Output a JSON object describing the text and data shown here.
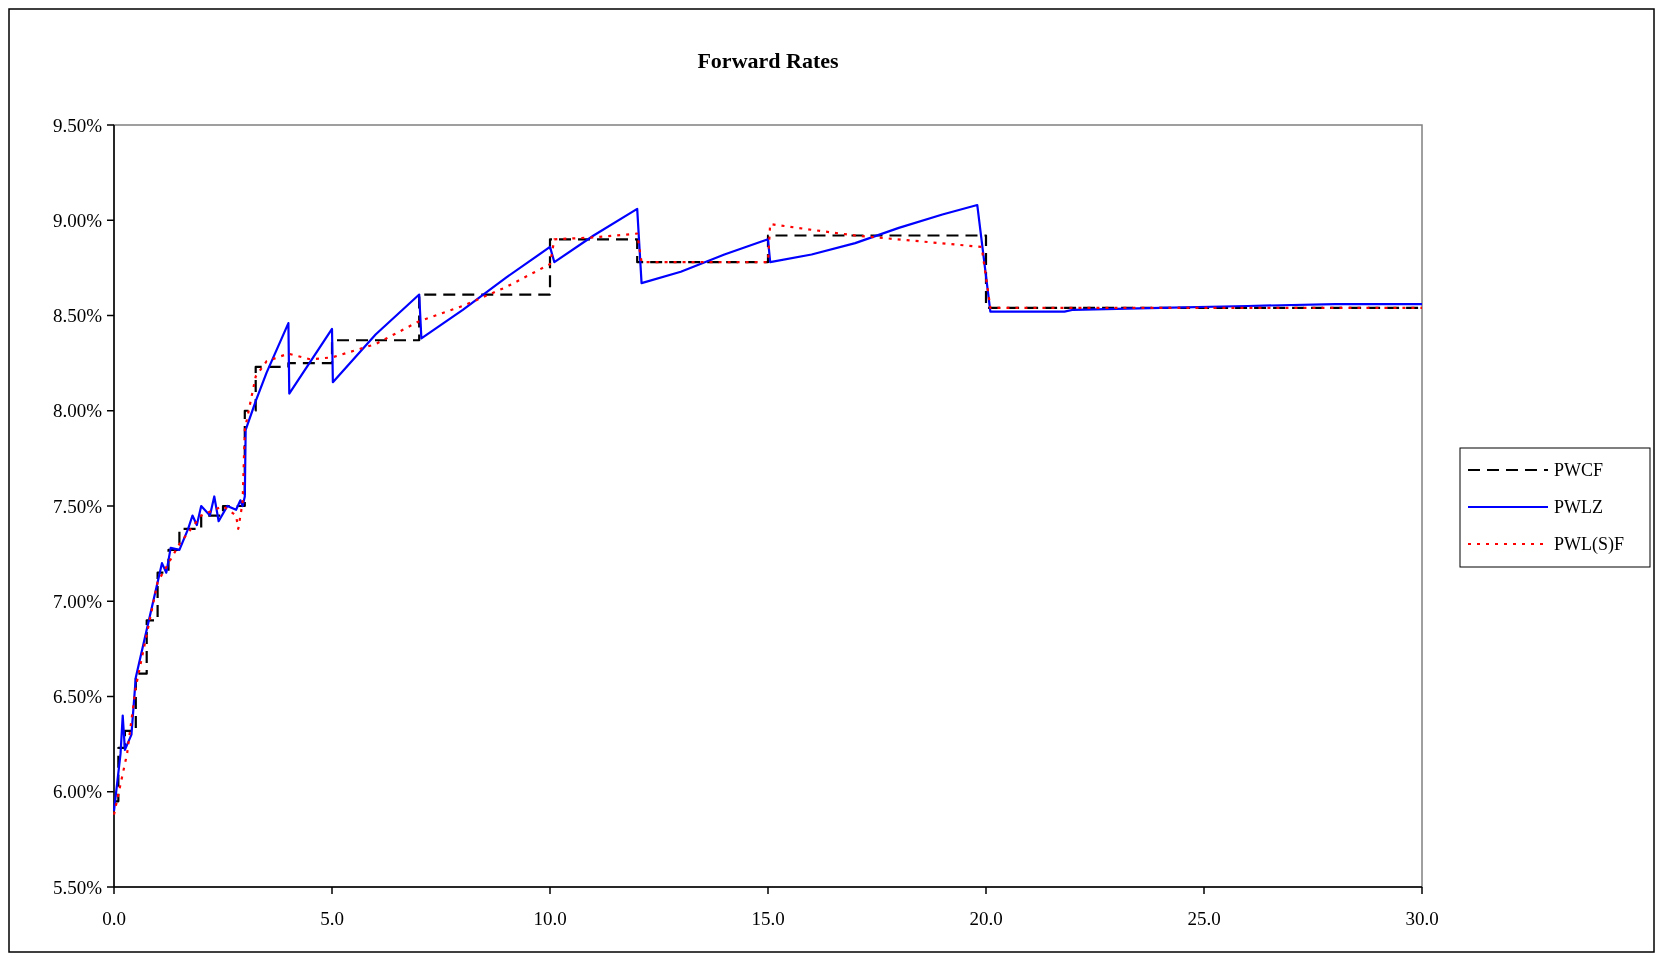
{
  "chart_data": {
    "type": "line",
    "title": "Forward Rates",
    "xlim": [
      0,
      30
    ],
    "xticks": [
      {
        "value": 0,
        "label": "0.0"
      },
      {
        "value": 5,
        "label": "5.0"
      },
      {
        "value": 10,
        "label": "10.0"
      },
      {
        "value": 15,
        "label": "15.0"
      },
      {
        "value": 20,
        "label": "20.0"
      },
      {
        "value": 25,
        "label": "25.0"
      },
      {
        "value": 30,
        "label": "30.0"
      }
    ],
    "ylim": [
      5.5,
      9.5
    ],
    "yticks": [
      {
        "value": 5.5,
        "label": "5.50%"
      },
      {
        "value": 6,
        "label": "6.00%"
      },
      {
        "value": 6.5,
        "label": "6.50%"
      },
      {
        "value": 7,
        "label": "7.00%"
      },
      {
        "value": 7.5,
        "label": "7.50%"
      },
      {
        "value": 8,
        "label": "8.00%"
      },
      {
        "value": 8.5,
        "label": "8.50%"
      },
      {
        "value": 9,
        "label": "9.00%"
      },
      {
        "value": 9.5,
        "label": "9.50%"
      }
    ],
    "grid": false,
    "legend": "right",
    "series": [
      {
        "name": "PWCF",
        "type": "step",
        "color": "#000000",
        "line_style": "dashed",
        "x": [
          0,
          0.1,
          0.25,
          0.5,
          0.75,
          1,
          1.25,
          1.5,
          2,
          2.5,
          3,
          3.25,
          4,
          5,
          7,
          10,
          12,
          15,
          20,
          30
        ],
        "values": [
          5.95,
          6.23,
          6.32,
          6.62,
          6.9,
          7.15,
          7.27,
          7.38,
          7.45,
          7.5,
          8.0,
          8.23,
          8.25,
          8.37,
          8.61,
          8.9,
          8.78,
          8.92,
          8.54,
          8.54
        ]
      },
      {
        "name": "PWLZ",
        "type": "line",
        "color": "#0000ff",
        "line_style": "solid",
        "x": [
          0,
          0.15,
          0.2,
          0.25,
          0.4,
          0.5,
          0.75,
          1,
          1.1,
          1.2,
          1.3,
          1.5,
          1.7,
          1.8,
          1.9,
          2.0,
          2.2,
          2.3,
          2.4,
          2.6,
          2.8,
          2.9,
          2.95,
          3.0,
          3.02,
          3.25,
          3.5,
          4.0,
          4.02,
          5.0,
          5.02,
          6,
          7,
          7.05,
          8,
          9,
          10,
          10.1,
          11,
          12,
          12.1,
          13,
          14,
          15,
          15.05,
          16,
          17,
          18,
          19,
          19.8,
          20.1,
          21.8,
          22,
          24,
          26,
          28,
          30
        ],
        "values": [
          5.9,
          6.2,
          6.4,
          6.22,
          6.3,
          6.6,
          6.85,
          7.1,
          7.2,
          7.15,
          7.28,
          7.27,
          7.38,
          7.45,
          7.4,
          7.5,
          7.45,
          7.55,
          7.42,
          7.5,
          7.48,
          7.53,
          7.5,
          7.55,
          7.9,
          8.05,
          8.2,
          8.46,
          8.09,
          8.43,
          8.15,
          8.4,
          8.61,
          8.38,
          8.53,
          8.7,
          8.86,
          8.78,
          8.92,
          9.06,
          8.67,
          8.73,
          8.82,
          8.9,
          8.78,
          8.82,
          8.88,
          8.96,
          9.03,
          9.08,
          8.52,
          8.52,
          8.53,
          8.54,
          8.55,
          8.56,
          8.56
        ]
      },
      {
        "name": "PWL(S)F",
        "type": "line",
        "color": "#ff0000",
        "line_style": "dotted",
        "x": [
          0,
          0.3,
          0.5,
          1,
          1.5,
          2,
          2.5,
          2.8,
          2.85,
          2.95,
          3.0,
          3.25,
          3.5,
          4,
          4.5,
          5,
          6,
          7,
          8,
          9,
          10,
          10.1,
          11,
          12,
          12.1,
          15,
          15.05,
          16,
          17,
          19.9,
          20.1,
          30
        ],
        "values": [
          5.88,
          6.2,
          6.55,
          7.1,
          7.3,
          7.45,
          7.5,
          7.45,
          7.38,
          7.52,
          7.9,
          8.18,
          8.26,
          8.3,
          8.27,
          8.28,
          8.35,
          8.47,
          8.55,
          8.65,
          8.77,
          8.9,
          8.91,
          8.93,
          8.78,
          8.78,
          8.98,
          8.95,
          8.92,
          8.86,
          8.54,
          8.54
        ]
      }
    ]
  }
}
